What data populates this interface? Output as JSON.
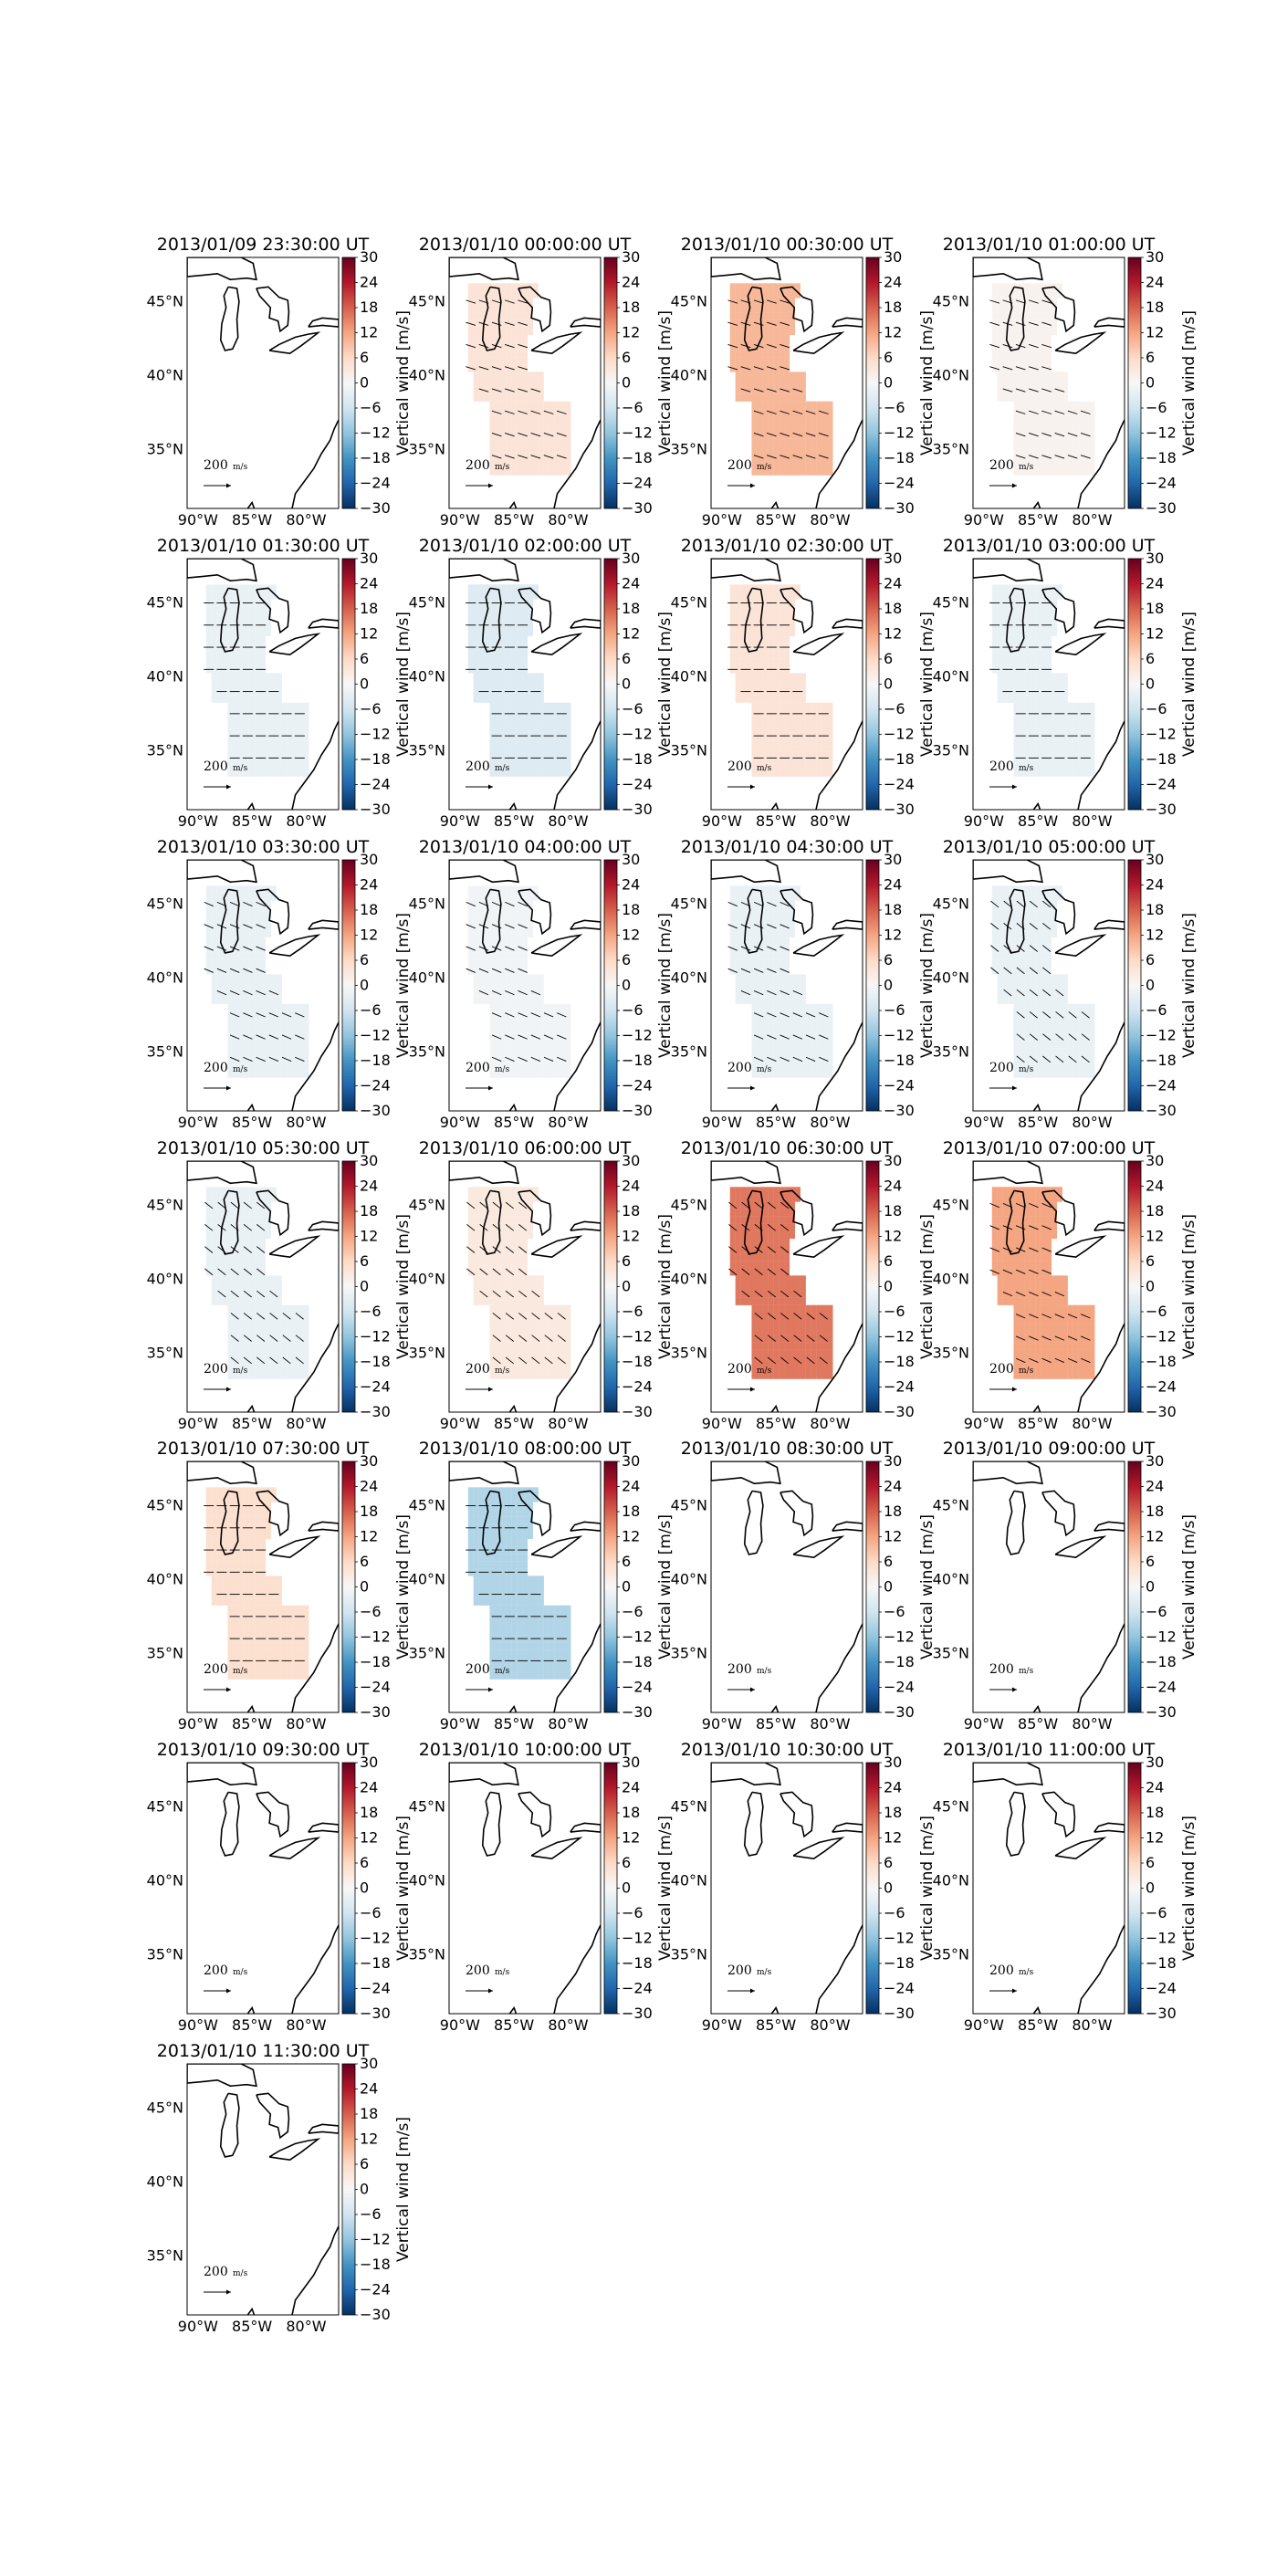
{
  "figure": {
    "rows": 7,
    "cols": 4
  },
  "chart_data": {
    "type": "heatmap",
    "description_units": "m/s",
    "colorbar": {
      "label": "Vertical wind [m/s]",
      "range": [
        -30,
        30
      ],
      "ticks": [
        "30",
        "24",
        "18",
        "12",
        "6",
        "0",
        "−6",
        "−12",
        "−18",
        "−24",
        "−30"
      ],
      "tick_values": [
        30,
        24,
        18,
        12,
        6,
        0,
        -6,
        -12,
        -18,
        -24,
        -30
      ],
      "colormap": "RdBu_r"
    },
    "axes": {
      "longitude_ticks": [
        "90°W",
        "85°W",
        "80°W"
      ],
      "longitude_tick_values": [
        -90,
        -85,
        -80
      ],
      "latitude_ticks": [
        "45°N",
        "40°N",
        "35°N"
      ],
      "latitude_tick_values": [
        45,
        40,
        35
      ],
      "lon_range": [
        -91,
        -77
      ],
      "lat_range": [
        31,
        48
      ]
    },
    "scale_arrow": {
      "value": "200",
      "unit": "m/s"
    },
    "panels": [
      {
        "title": "2013/01/09 23:30:00 UT",
        "vertical_wind": null,
        "vectors": "none"
      },
      {
        "title": "2013/01/10 00:00:00 UT",
        "vertical_wind": 4,
        "vectors": "southwest-east"
      },
      {
        "title": "2013/01/10 00:30:00 UT",
        "vertical_wind": 10,
        "vectors": "southwest-east"
      },
      {
        "title": "2013/01/10 01:00:00 UT",
        "vertical_wind": 1,
        "vectors": "southwest-east"
      },
      {
        "title": "2013/01/10 01:30:00 UT",
        "vertical_wind": -2,
        "vectors": "east"
      },
      {
        "title": "2013/01/10 02:00:00 UT",
        "vertical_wind": -4,
        "vectors": "east"
      },
      {
        "title": "2013/01/10 02:30:00 UT",
        "vertical_wind": 4,
        "vectors": "east"
      },
      {
        "title": "2013/01/10 03:00:00 UT",
        "vertical_wind": -2,
        "vectors": "east"
      },
      {
        "title": "2013/01/10 03:30:00 UT",
        "vertical_wind": -2,
        "vectors": "east-southeast"
      },
      {
        "title": "2013/01/10 04:00:00 UT",
        "vertical_wind": -1,
        "vectors": "east-southeast"
      },
      {
        "title": "2013/01/10 04:30:00 UT",
        "vertical_wind": -2,
        "vectors": "east-southeast"
      },
      {
        "title": "2013/01/10 05:00:00 UT",
        "vertical_wind": -2,
        "vectors": "southeast"
      },
      {
        "title": "2013/01/10 05:30:00 UT",
        "vertical_wind": -2,
        "vectors": "southeast"
      },
      {
        "title": "2013/01/10 06:00:00 UT",
        "vertical_wind": 3,
        "vectors": "southeast"
      },
      {
        "title": "2013/01/10 06:30:00 UT",
        "vertical_wind": 16,
        "vectors": "southeast"
      },
      {
        "title": "2013/01/10 07:00:00 UT",
        "vertical_wind": 12,
        "vectors": "east-southeast"
      },
      {
        "title": "2013/01/10 07:30:00 UT",
        "vertical_wind": 5,
        "vectors": "east"
      },
      {
        "title": "2013/01/10 08:00:00 UT",
        "vertical_wind": -9,
        "vectors": "east"
      },
      {
        "title": "2013/01/10 08:30:00 UT",
        "vertical_wind": null,
        "vectors": "none"
      },
      {
        "title": "2013/01/10 09:00:00 UT",
        "vertical_wind": null,
        "vectors": "none"
      },
      {
        "title": "2013/01/10 09:30:00 UT",
        "vertical_wind": null,
        "vectors": "none"
      },
      {
        "title": "2013/01/10 10:00:00 UT",
        "vertical_wind": null,
        "vectors": "none"
      },
      {
        "title": "2013/01/10 10:30:00 UT",
        "vertical_wind": null,
        "vectors": "none"
      },
      {
        "title": "2013/01/10 11:00:00 UT",
        "vertical_wind": null,
        "vectors": "none"
      },
      {
        "title": "2013/01/10 11:30:00 UT",
        "vertical_wind": null,
        "vectors": "none"
      }
    ]
  }
}
